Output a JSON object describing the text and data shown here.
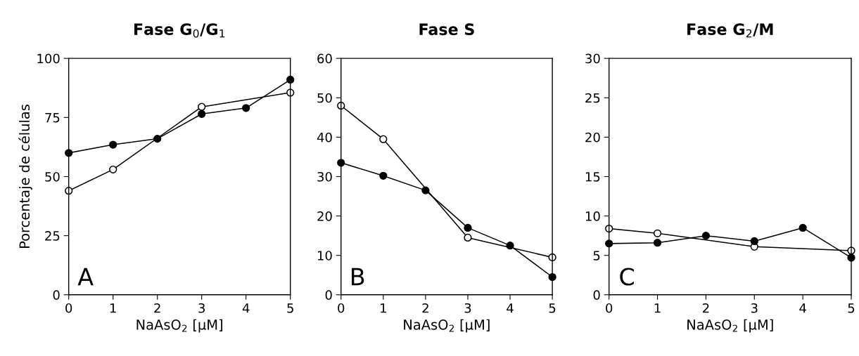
{
  "chart_data": [
    {
      "type": "line",
      "title": "Fase G$_{0}$/G$_{1}$",
      "xlabel": "NaAsO$_{2}$ [μM]",
      "ylabel": "Porcentaje de células",
      "x": [
        0,
        1,
        2,
        3,
        4,
        5
      ],
      "xlim": [
        0,
        5
      ],
      "xticks": [
        0,
        1,
        2,
        3,
        4,
        5
      ],
      "ylim": [
        0,
        100
      ],
      "yticks": [
        0,
        25,
        50,
        75,
        100
      ],
      "marker": "circle",
      "grid": false,
      "annotations": [
        "A"
      ],
      "series": [
        {
          "color": "#000000",
          "values": [
            60,
            63.5,
            66,
            76.5,
            79,
            91
          ]
        },
        {
          "color": "#ffffff",
          "x": [
            0,
            1,
            3,
            5
          ],
          "values": [
            44,
            53,
            79.5,
            85.5
          ]
        }
      ]
    },
    {
      "type": "line",
      "title": "Fase S",
      "xlabel": "NaAsO$_{2}$ [μM]",
      "x": [
        0,
        1,
        2,
        3,
        4,
        5
      ],
      "xlim": [
        0,
        5
      ],
      "xticks": [
        0,
        1,
        2,
        3,
        4,
        5
      ],
      "ylim": [
        0,
        60
      ],
      "yticks": [
        0,
        10,
        20,
        30,
        40,
        50,
        60
      ],
      "marker": "circle",
      "grid": false,
      "annotations": [
        "B"
      ],
      "series": [
        {
          "color": "#000000",
          "values": [
            33.5,
            30.2,
            26.5,
            17,
            12.5,
            4.5
          ]
        },
        {
          "color": "#ffffff",
          "x": [
            0,
            1,
            3,
            5
          ],
          "values": [
            48,
            39.5,
            14.5,
            9.5
          ]
        }
      ]
    },
    {
      "type": "line",
      "title": "Fase G$_{2}$/M",
      "xlabel": "NaAsO$_{2}$ [μM]",
      "x": [
        0,
        1,
        2,
        3,
        4,
        5
      ],
      "xlim": [
        0,
        5
      ],
      "xticks": [
        0,
        1,
        2,
        3,
        4,
        5
      ],
      "ylim": [
        0,
        30
      ],
      "yticks": [
        0,
        5,
        10,
        15,
        20,
        25,
        30
      ],
      "marker": "circle",
      "grid": false,
      "annotations": [
        "C"
      ],
      "series": [
        {
          "color": "#000000",
          "values": [
            6.5,
            6.6,
            7.5,
            6.8,
            8.5,
            4.7
          ]
        },
        {
          "color": "#ffffff",
          "x": [
            0,
            1,
            3,
            5
          ],
          "values": [
            8.4,
            7.8,
            6.1,
            5.6
          ]
        }
      ]
    }
  ]
}
